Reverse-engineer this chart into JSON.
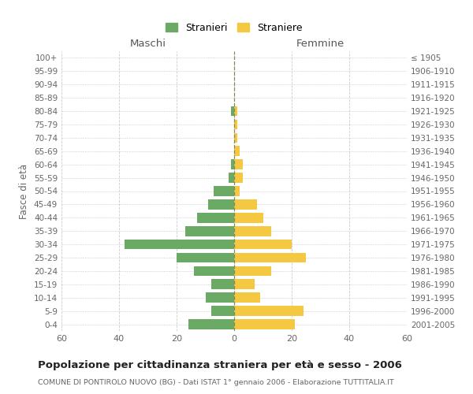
{
  "age_groups": [
    "0-4",
    "5-9",
    "10-14",
    "15-19",
    "20-24",
    "25-29",
    "30-34",
    "35-39",
    "40-44",
    "45-49",
    "50-54",
    "55-59",
    "60-64",
    "65-69",
    "70-74",
    "75-79",
    "80-84",
    "85-89",
    "90-94",
    "95-99",
    "100+"
  ],
  "birth_years": [
    "2001-2005",
    "1996-2000",
    "1991-1995",
    "1986-1990",
    "1981-1985",
    "1976-1980",
    "1971-1975",
    "1966-1970",
    "1961-1965",
    "1956-1960",
    "1951-1955",
    "1946-1950",
    "1941-1945",
    "1936-1940",
    "1931-1935",
    "1926-1930",
    "1921-1925",
    "1916-1920",
    "1911-1915",
    "1906-1910",
    "≤ 1905"
  ],
  "males": [
    16,
    8,
    10,
    8,
    14,
    20,
    38,
    17,
    13,
    9,
    7,
    2,
    1,
    0,
    0,
    0,
    1,
    0,
    0,
    0,
    0
  ],
  "females": [
    21,
    24,
    9,
    7,
    13,
    25,
    20,
    13,
    10,
    8,
    2,
    3,
    3,
    2,
    1,
    1,
    1,
    0,
    0,
    0,
    0
  ],
  "male_color": "#6aaa64",
  "female_color": "#f5c842",
  "title": "Popolazione per cittadinanza straniera per età e sesso - 2006",
  "subtitle": "COMUNE DI PONTIROLO NUOVO (BG) - Dati ISTAT 1° gennaio 2006 - Elaborazione TUTTITALIA.IT",
  "xlabel_left": "Maschi",
  "xlabel_right": "Femmine",
  "ylabel_left": "Fasce di età",
  "legend_male": "Stranieri",
  "legend_female": "Straniere",
  "xlim": 60,
  "background_color": "#ffffff",
  "grid_color": "#cccccc"
}
